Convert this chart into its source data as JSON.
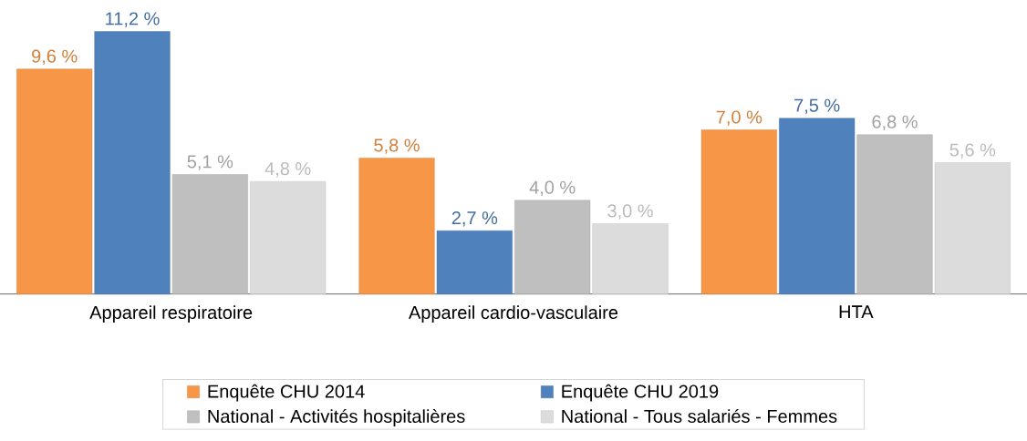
{
  "chart_data": {
    "type": "bar",
    "categories": [
      "Appareil respiratoire",
      "Appareil cardio-vasculaire",
      "HTA"
    ],
    "series": [
      {
        "name": "Enquête CHU 2014",
        "color": "#f79646",
        "values": [
          9.6,
          5.8,
          7.0
        ],
        "value_labels": [
          "9,6 %",
          "5,8 %",
          "7,0 %"
        ]
      },
      {
        "name": "Enquête CHU 2019",
        "color": "#4f81bd",
        "values": [
          11.2,
          2.7,
          7.5
        ],
        "value_labels": [
          "11,2 %",
          "2,7 %",
          "7,5 %"
        ]
      },
      {
        "name": "National - Activités hospitalières",
        "color": "#bfbfbf",
        "values": [
          5.1,
          4.0,
          6.8
        ],
        "value_labels": [
          "5,1 %",
          "4,0 %",
          "6,8 %"
        ]
      },
      {
        "name": "National - Tous salariés - Femmes",
        "color": "#dcdcdc",
        "values": [
          4.8,
          3.0,
          5.6
        ],
        "value_labels": [
          "4,8 %",
          "3,0 %",
          "5,6 %"
        ]
      }
    ],
    "legend": "bottom"
  }
}
